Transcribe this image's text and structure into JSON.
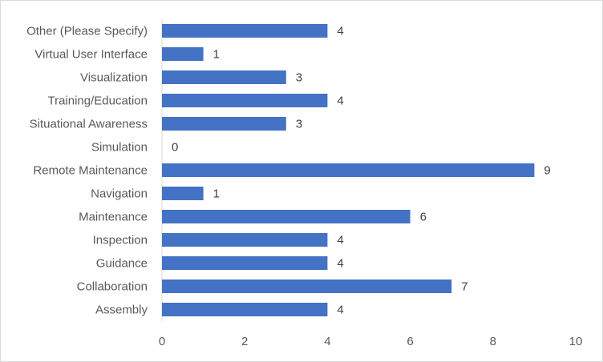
{
  "chart_data": {
    "type": "bar",
    "orientation": "horizontal",
    "categories": [
      "Other (Please Specify)",
      "Virtual User Interface",
      "Visualization",
      "Training/Education",
      "Situational Awareness",
      "Simulation",
      "Remote Maintenance",
      "Navigation",
      "Maintenance",
      "Inspection",
      "Guidance",
      "Collaboration",
      "Assembly"
    ],
    "values": [
      4,
      1,
      3,
      4,
      3,
      0,
      9,
      1,
      6,
      4,
      4,
      7,
      4
    ],
    "xlim": [
      0,
      10
    ],
    "xticks": [
      0,
      2,
      4,
      6,
      8,
      10
    ],
    "grid": false,
    "legend": "none",
    "bar_color": "#4472C4"
  }
}
